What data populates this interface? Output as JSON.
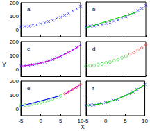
{
  "xlabel": "X",
  "ylabel": "Y",
  "chart_data": [
    {
      "type": "scatter",
      "title": "a",
      "xlim": [
        -5,
        10
      ],
      "xticks": [
        -5,
        0,
        5,
        10
      ],
      "ylim": [
        -50,
        200
      ],
      "yticks": [
        0,
        100,
        200
      ],
      "tick_labels": "y",
      "series": [
        {
          "type": "scatter",
          "color": "#0000ff",
          "marker": "x",
          "x": [
            -5,
            -4,
            -3,
            -2,
            -1,
            0,
            1,
            2,
            3,
            4,
            5,
            6,
            7,
            8,
            9,
            10
          ],
          "values": [
            24,
            27,
            28,
            34,
            38,
            46,
            52,
            62,
            70,
            84,
            94,
            109,
            122,
            140,
            155,
            176
          ]
        }
      ]
    },
    {
      "type": "scatter",
      "title": "b",
      "xlim": [
        -5,
        10
      ],
      "xticks": [
        -5,
        0,
        5,
        10
      ],
      "ylim": [
        -50,
        200
      ],
      "yticks": [
        0,
        100,
        200
      ],
      "tick_labels": false,
      "series": [
        {
          "type": "scatter",
          "color": "#0000ff",
          "marker": "x",
          "x": [
            -5,
            -4,
            -3,
            -2,
            -1,
            0,
            1,
            2,
            3,
            4,
            5,
            6,
            7,
            8,
            9,
            10
          ],
          "values": [
            24,
            27,
            28,
            34,
            38,
            46,
            52,
            62,
            70,
            84,
            94,
            109,
            122,
            140,
            155,
            176
          ]
        },
        {
          "type": "line",
          "color": "#00cc00",
          "line_style": "solid",
          "x": [
            -5,
            8
          ],
          "values": [
            15,
            130
          ]
        }
      ]
    },
    {
      "type": "scatter",
      "title": "c",
      "xlim": [
        -5,
        10
      ],
      "xticks": [
        -5,
        0,
        5,
        10
      ],
      "ylim": [
        -50,
        200
      ],
      "yticks": [
        0,
        100,
        200
      ],
      "tick_labels": "y",
      "series": [
        {
          "type": "scatter",
          "color": "#0000ff",
          "marker": "x",
          "x": [
            -5,
            -4,
            -3,
            -2,
            -1,
            0,
            1,
            2,
            3,
            4,
            5,
            6,
            7,
            8,
            9,
            10
          ],
          "values": [
            24,
            27,
            28,
            34,
            38,
            46,
            52,
            62,
            70,
            84,
            94,
            109,
            122,
            140,
            155,
            176
          ]
        },
        {
          "type": "line",
          "color": "#cc00cc",
          "line_style": "solid",
          "x": [
            -5,
            -4,
            -3,
            -2,
            -1,
            0,
            1,
            2,
            3,
            4,
            5,
            6,
            7,
            8,
            9,
            10
          ],
          "values": [
            25,
            26,
            29,
            33,
            39,
            45,
            53,
            61,
            71,
            83,
            95,
            108,
            123,
            139,
            156,
            175
          ]
        }
      ]
    },
    {
      "type": "scatter",
      "title": "d",
      "xlim": [
        -5,
        10
      ],
      "xticks": [
        -5,
        0,
        5,
        10
      ],
      "ylim": [
        -50,
        200
      ],
      "yticks": [
        0,
        100,
        200
      ],
      "tick_labels": false,
      "series": [
        {
          "type": "scatter",
          "color": "#00cc00",
          "marker": "circle",
          "x": [
            -5,
            -4,
            -3,
            -2,
            -1,
            0,
            1,
            2,
            3,
            4,
            5
          ],
          "values": [
            24,
            27,
            28,
            34,
            38,
            46,
            52,
            62,
            70,
            84,
            94
          ]
        },
        {
          "type": "scatter",
          "color": "#ff0000",
          "marker": "diamond",
          "x": [
            6,
            7,
            8,
            9,
            10
          ],
          "values": [
            109,
            122,
            140,
            155,
            176
          ]
        }
      ]
    },
    {
      "type": "scatter",
      "title": "e",
      "xlim": [
        -5,
        10
      ],
      "xticks": [
        -5,
        0,
        5,
        10
      ],
      "ylim": [
        -50,
        200
      ],
      "yticks": [
        0,
        100,
        200
      ],
      "series": [
        {
          "type": "scatter",
          "color": "#00cc00",
          "marker": "circle",
          "x": [
            -5,
            -4,
            -3,
            -2,
            -1,
            0,
            1,
            2,
            3,
            4,
            5
          ],
          "values": [
            24,
            27,
            28,
            34,
            38,
            46,
            52,
            62,
            70,
            84,
            94
          ]
        },
        {
          "type": "scatter",
          "color": "#ff0000",
          "marker": "diamond",
          "x": [
            6,
            7,
            8,
            9,
            10
          ],
          "values": [
            109,
            122,
            140,
            155,
            176
          ]
        },
        {
          "type": "line",
          "color": "#0000ff",
          "line_style": "solid",
          "x": [
            -5,
            5
          ],
          "values": [
            20,
            95
          ]
        },
        {
          "type": "line",
          "color": "#cc00cc",
          "line_style": "solid",
          "x": [
            6,
            10
          ],
          "values": [
            105,
            175
          ]
        }
      ]
    },
    {
      "type": "scatter",
      "title": "f",
      "xlim": [
        -5,
        10
      ],
      "xticks": [
        -5,
        0,
        5,
        10
      ],
      "ylim": [
        -50,
        200
      ],
      "yticks": [
        0,
        100,
        200
      ],
      "tick_labels": "x",
      "series": [
        {
          "type": "scatter",
          "color": "#0000ff",
          "marker": "x",
          "x": [
            -5,
            -4,
            -3,
            -2,
            -1,
            0,
            1,
            2,
            3,
            4,
            5,
            6,
            7,
            8,
            9,
            10
          ],
          "values": [
            24,
            27,
            28,
            34,
            38,
            46,
            52,
            62,
            70,
            84,
            94,
            109,
            122,
            140,
            155,
            176
          ]
        },
        {
          "type": "line",
          "color": "#00cc00",
          "line_style": "solid",
          "x": [
            -5,
            -4,
            -3,
            -2,
            -1,
            0,
            1,
            2,
            3,
            4,
            5,
            6,
            7,
            8,
            9,
            10
          ],
          "values": [
            25,
            26,
            29,
            33,
            39,
            45,
            53,
            61,
            71,
            83,
            95,
            108,
            123,
            139,
            156,
            175
          ]
        }
      ]
    }
  ]
}
